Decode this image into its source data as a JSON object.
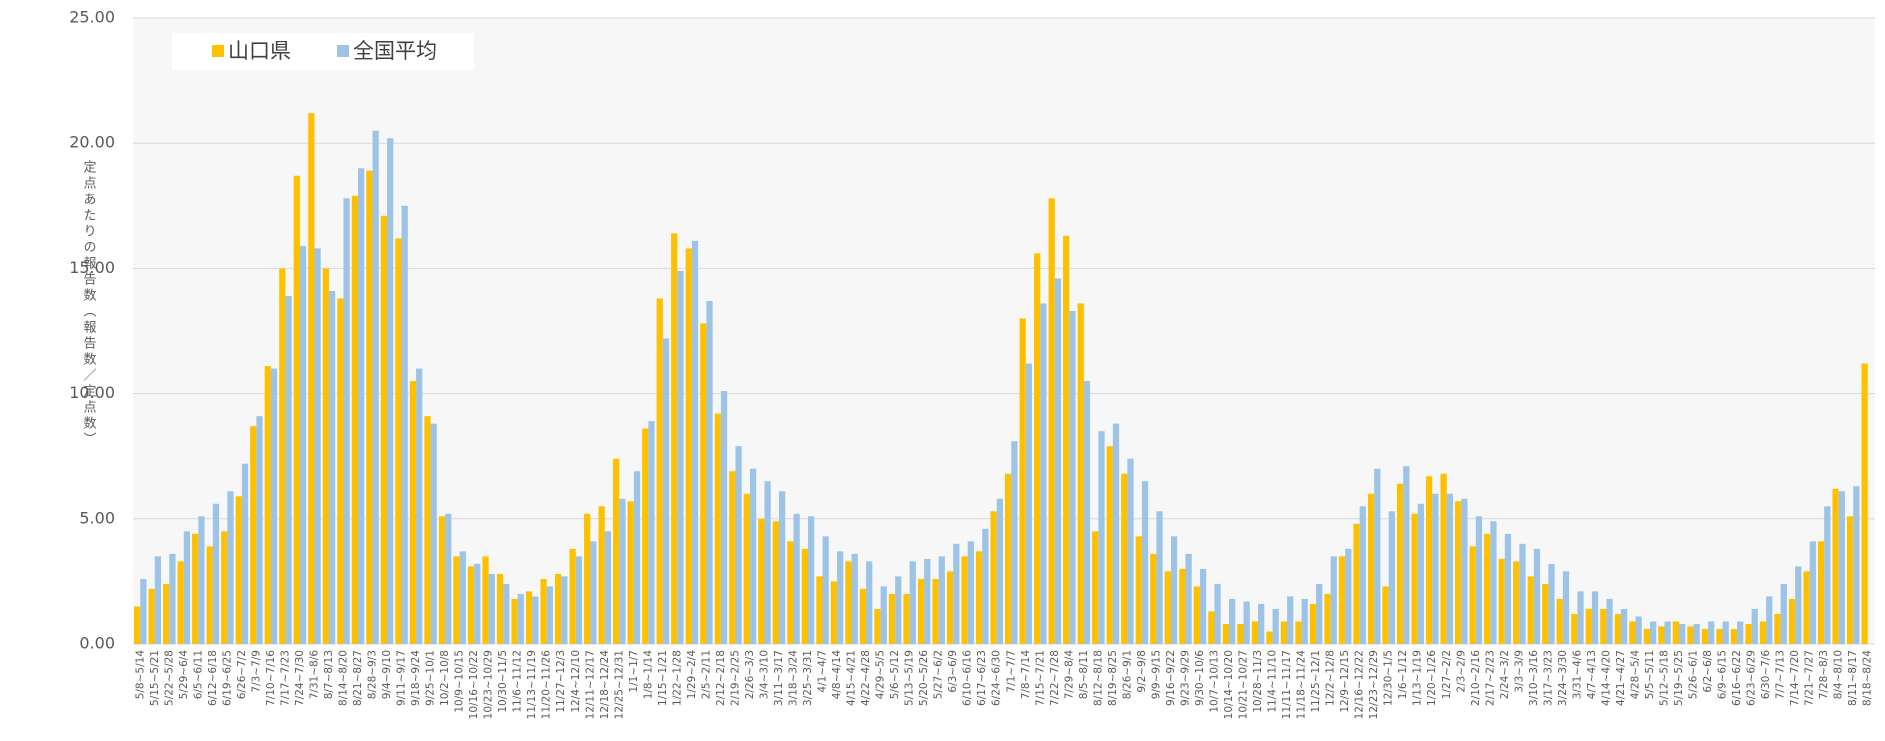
{
  "chart_data": {
    "type": "bar",
    "y_label": "定点あたりの報告数（報告数／定点数）",
    "categories": [
      "5/8~5/14",
      "5/15~5/21",
      "5/22~5/28",
      "5/29~6/4",
      "6/5~6/11",
      "6/12~6/18",
      "6/19~6/25",
      "6/26~7/2",
      "7/3~7/9",
      "7/10~7/16",
      "7/17~7/23",
      "7/24~7/30",
      "7/31~8/6",
      "8/7~8/13",
      "8/14~8/20",
      "8/21~8/27",
      "8/28~9/3",
      "9/4~9/10",
      "9/11~9/17",
      "9/18~9/24",
      "9/25~10/1",
      "10/2~10/8",
      "10/9~10/15",
      "10/16~10/22",
      "10/23~10/29",
      "10/30~11/5",
      "11/6~11/12",
      "11/13~11/19",
      "11/20~11/26",
      "11/27~12/3",
      "12/4~12/10",
      "12/11~12/17",
      "12/18~12/24",
      "12/25~12/31",
      "1/1~1/7",
      "1/8~1/14",
      "1/15~1/21",
      "1/22~1/28",
      "1/29~2/4",
      "2/5~2/11",
      "2/12~2/18",
      "2/19~2/25",
      "2/26~3/3",
      "3/4~3/10",
      "3/11~3/17",
      "3/18~3/24",
      "3/25~3/31",
      "4/1~4/7",
      "4/8~4/14",
      "4/15~4/21",
      "4/22~4/28",
      "4/29~5/5",
      "5/6~5/12",
      "5/13~5/19",
      "5/20~5/26",
      "5/27~6/2",
      "6/3~6/9",
      "6/10~6/16",
      "6/17~6/23",
      "6/24~6/30",
      "7/1~7/7",
      "7/8~7/14",
      "7/15~7/21",
      "7/22~7/28",
      "7/29~8/4",
      "8/5~8/11",
      "8/12~8/18",
      "8/19~8/25",
      "8/26~9/1",
      "9/2~9/8",
      "9/9~9/15",
      "9/16~9/22",
      "9/23~9/29",
      "9/30~10/6",
      "10/7~10/13",
      "10/14~10/20",
      "10/21~10/27",
      "10/28~11/3",
      "11/4~11/10",
      "11/11~11/17",
      "11/18~11/24",
      "11/25~12/1",
      "12/2~12/8",
      "12/9~12/15",
      "12/16~12/22",
      "12/23~12/29",
      "12/30~1/5",
      "1/6~1/12",
      "1/13~1/19",
      "1/20~1/26",
      "1/27~2/2",
      "2/3~2/9",
      "2/10~2/16",
      "2/17~2/23",
      "2/24~3/2",
      "3/3~3/9",
      "3/10~3/16",
      "3/17~3/23",
      "3/24~3/30",
      "3/31~4/6",
      "4/7~4/13",
      "4/14~4/20",
      "4/21~4/27",
      "4/28~5/4",
      "5/5~5/11",
      "5/12~5/18",
      "5/19~5/25",
      "5/26~6/1",
      "6/2~6/8",
      "6/9~6/15",
      "6/16~6/22",
      "6/23~6/29",
      "6/30~7/6",
      "7/7~7/13",
      "7/14~7/20",
      "7/21~7/27",
      "7/28~8/3",
      "8/4~8/10",
      "8/11~8/17",
      "8/18~8/24"
    ],
    "series": [
      {
        "name": "山口県",
        "color": "#ffc000",
        "values": [
          1.5,
          2.2,
          2.4,
          3.3,
          4.4,
          3.9,
          4.5,
          5.9,
          8.7,
          11.1,
          15.0,
          18.7,
          21.2,
          15.0,
          13.8,
          17.9,
          18.9,
          17.1,
          16.2,
          10.5,
          9.1,
          5.1,
          3.5,
          3.1,
          3.5,
          2.8,
          1.8,
          2.1,
          2.6,
          2.8,
          3.8,
          5.2,
          5.5,
          7.4,
          5.7,
          8.6,
          13.8,
          16.4,
          15.8,
          12.8,
          9.2,
          6.9,
          6.0,
          5.0,
          4.9,
          4.1,
          3.8,
          2.7,
          2.5,
          3.3,
          2.2,
          1.4,
          2.0,
          2.0,
          2.6,
          2.6,
          2.9,
          3.5,
          3.7,
          5.3,
          6.8,
          13.0,
          15.6,
          17.8,
          16.3,
          13.6,
          4.5,
          7.9,
          6.8,
          4.3,
          3.6,
          2.9,
          3.0,
          2.3,
          1.3,
          0.8,
          0.8,
          0.9,
          0.5,
          0.9,
          0.9,
          1.6,
          2.0,
          3.5,
          4.8,
          6.0,
          2.3,
          6.4,
          5.2,
          6.7,
          6.8,
          5.7,
          3.9,
          4.4,
          3.4,
          3.3,
          2.7,
          2.4,
          1.8,
          1.2,
          1.4,
          1.4,
          1.2,
          0.9,
          0.6,
          0.7,
          0.9,
          0.7,
          0.6,
          0.6,
          0.6,
          0.8,
          0.9,
          1.2,
          1.8,
          2.9,
          4.1,
          6.2,
          5.1,
          11.2
        ]
      },
      {
        "name": "全国平均",
        "color": "#9dc3e6",
        "values": [
          2.6,
          3.5,
          3.6,
          4.5,
          5.1,
          5.6,
          6.1,
          7.2,
          9.1,
          11.0,
          13.9,
          15.9,
          15.8,
          14.1,
          17.8,
          19.0,
          20.5,
          20.2,
          17.5,
          11.0,
          8.8,
          5.2,
          3.7,
          3.2,
          2.8,
          2.4,
          2.0,
          1.9,
          2.3,
          2.7,
          3.5,
          4.1,
          4.5,
          5.8,
          6.9,
          8.9,
          12.2,
          14.9,
          16.1,
          13.7,
          10.1,
          7.9,
          7.0,
          6.5,
          6.1,
          5.2,
          5.1,
          4.3,
          3.7,
          3.6,
          3.3,
          2.3,
          2.7,
          3.3,
          3.4,
          3.5,
          4.0,
          4.1,
          4.6,
          5.8,
          8.1,
          11.2,
          13.6,
          14.6,
          13.3,
          10.5,
          8.5,
          8.8,
          7.4,
          6.5,
          5.3,
          4.3,
          3.6,
          3.0,
          2.4,
          1.8,
          1.7,
          1.6,
          1.4,
          1.9,
          1.8,
          2.4,
          3.5,
          3.8,
          5.5,
          7.0,
          5.3,
          7.1,
          5.6,
          6.0,
          6.0,
          5.8,
          5.1,
          4.9,
          4.4,
          4.0,
          3.8,
          3.2,
          2.9,
          2.1,
          2.1,
          1.8,
          1.4,
          1.1,
          0.9,
          0.9,
          0.8,
          0.8,
          0.9,
          0.9,
          0.9,
          1.4,
          1.9,
          2.4,
          3.1,
          4.1,
          5.5,
          6.1,
          6.3,
          null
        ]
      }
    ],
    "ylim": [
      0,
      25
    ],
    "yticks": [
      {
        "value": 0,
        "label": "0.00"
      },
      {
        "value": 5,
        "label": "5.00"
      },
      {
        "value": 10,
        "label": "10.00"
      },
      {
        "value": 15,
        "label": "15.00"
      },
      {
        "value": 20,
        "label": "20.00"
      },
      {
        "value": 25,
        "label": "25.00"
      }
    ],
    "grid": true,
    "legend": "top-left"
  }
}
